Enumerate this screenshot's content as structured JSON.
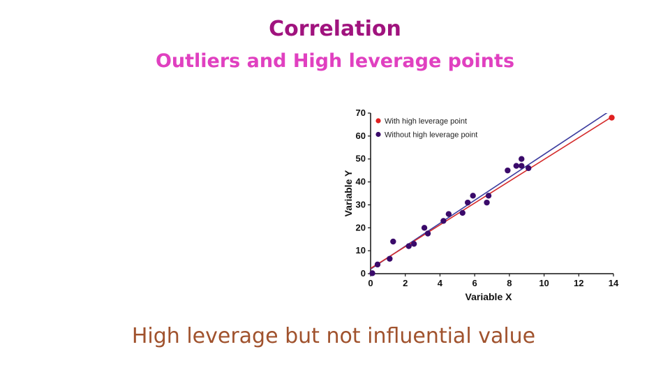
{
  "slide": {
    "title": "Correlation",
    "subtitle": "Outliers and High leverage points",
    "caption": "High leverage but not influential value"
  },
  "chart_data": {
    "type": "scatter",
    "xlabel": "Variable X",
    "ylabel": "Variable Y",
    "xlim": [
      0,
      14
    ],
    "ylim": [
      0,
      70
    ],
    "xticks": [
      0,
      2,
      4,
      6,
      8,
      10,
      12,
      14
    ],
    "yticks": [
      0,
      10,
      20,
      30,
      40,
      50,
      60,
      70
    ],
    "grid": false,
    "legend_position": "top-left",
    "series": [
      {
        "name": "With high leverage point",
        "color": "#e02020",
        "points": [
          [
            13.9,
            68
          ]
        ],
        "fit_line": {
          "slope": 4.75,
          "intercept": 2.3
        }
      },
      {
        "name": "Without high leverage point",
        "color": "#3a0a6a",
        "points": [
          [
            0.1,
            0.2
          ],
          [
            0.4,
            4
          ],
          [
            1.1,
            6.5
          ],
          [
            1.3,
            14
          ],
          [
            2.2,
            12
          ],
          [
            2.5,
            13
          ],
          [
            3.1,
            20
          ],
          [
            3.3,
            17.5
          ],
          [
            4.2,
            23
          ],
          [
            4.5,
            26
          ],
          [
            5.3,
            26.5
          ],
          [
            5.6,
            31
          ],
          [
            5.9,
            34
          ],
          [
            6.7,
            31
          ],
          [
            6.8,
            34
          ],
          [
            7.9,
            45
          ],
          [
            8.4,
            47
          ],
          [
            8.7,
            47
          ],
          [
            8.7,
            50
          ],
          [
            9.1,
            46
          ]
        ],
        "fit_line": {
          "slope": 5.0,
          "intercept": 2.0
        }
      }
    ]
  }
}
